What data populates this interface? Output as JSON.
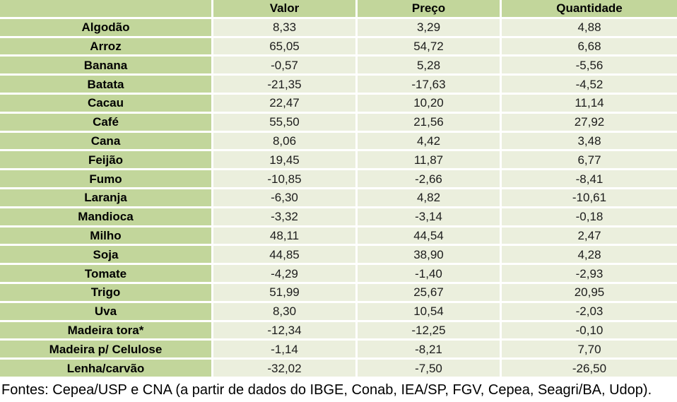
{
  "table": {
    "columns": [
      "",
      "Valor",
      "Preço",
      "Quantidade"
    ],
    "rows": [
      [
        "Algodão",
        "8,33",
        "3,29",
        "4,88"
      ],
      [
        "Arroz",
        "65,05",
        "54,72",
        "6,68"
      ],
      [
        "Banana",
        "-0,57",
        "5,28",
        "-5,56"
      ],
      [
        "Batata",
        "-21,35",
        "-17,63",
        "-4,52"
      ],
      [
        "Cacau",
        "22,47",
        "10,20",
        "11,14"
      ],
      [
        "Café",
        "55,50",
        "21,56",
        "27,92"
      ],
      [
        "Cana",
        "8,06",
        "4,42",
        "3,48"
      ],
      [
        "Feijão",
        "19,45",
        "11,87",
        "6,77"
      ],
      [
        "Fumo",
        "-10,85",
        "-2,66",
        "-8,41"
      ],
      [
        "Laranja",
        "-6,30",
        "4,82",
        "-10,61"
      ],
      [
        "Mandioca",
        "-3,32",
        "-3,14",
        "-0,18"
      ],
      [
        "Milho",
        "48,11",
        "44,54",
        "2,47"
      ],
      [
        "Soja",
        "44,85",
        "38,90",
        "4,28"
      ],
      [
        "Tomate",
        "-4,29",
        "-1,40",
        "-2,93"
      ],
      [
        "Trigo",
        "51,99",
        "25,67",
        "20,95"
      ],
      [
        "Uva",
        "8,30",
        "10,54",
        "-2,03"
      ],
      [
        "Madeira tora*",
        "-12,34",
        "-12,25",
        "-0,10"
      ],
      [
        "Madeira p/ Celulose",
        "-1,14",
        "-8,21",
        "7,70"
      ],
      [
        "Lenha/carvão",
        "-32,02",
        "-7,50",
        "-26,50"
      ]
    ]
  },
  "footer": "Fontes: Cepea/USP e CNA (a partir de dados do IBGE, Conab, IEA/SP, FGV, Cepea, Seagri/BA, Udop).",
  "colors": {
    "header_green": "#c2d69b",
    "cell_light": "#ebefdd",
    "gap_white": "#ffffff",
    "text_black": "#000000"
  },
  "chart_data": {
    "type": "table",
    "columns": [
      "Valor",
      "Preço",
      "Quantidade"
    ],
    "row_labels": [
      "Algodão",
      "Arroz",
      "Banana",
      "Batata",
      "Cacau",
      "Café",
      "Cana",
      "Feijão",
      "Fumo",
      "Laranja",
      "Mandioca",
      "Milho",
      "Soja",
      "Tomate",
      "Trigo",
      "Uva",
      "Madeira tora*",
      "Madeira p/ Celulose",
      "Lenha/carvão"
    ],
    "rows": [
      [
        8.33,
        3.29,
        4.88
      ],
      [
        65.05,
        54.72,
        6.68
      ],
      [
        -0.57,
        5.28,
        -5.56
      ],
      [
        -21.35,
        -17.63,
        -4.52
      ],
      [
        22.47,
        10.2,
        11.14
      ],
      [
        55.5,
        21.56,
        27.92
      ],
      [
        8.06,
        4.42,
        3.48
      ],
      [
        19.45,
        11.87,
        6.77
      ],
      [
        -10.85,
        -2.66,
        -8.41
      ],
      [
        -6.3,
        4.82,
        -10.61
      ],
      [
        -3.32,
        -3.14,
        -0.18
      ],
      [
        48.11,
        44.54,
        2.47
      ],
      [
        44.85,
        38.9,
        4.28
      ],
      [
        -4.29,
        -1.4,
        -2.93
      ],
      [
        51.99,
        25.67,
        20.95
      ],
      [
        8.3,
        10.54,
        -2.03
      ],
      [
        -12.34,
        -12.25,
        -0.1
      ],
      [
        -1.14,
        -8.21,
        7.7
      ],
      [
        -32.02,
        -7.5,
        -26.5
      ]
    ],
    "footnote": "Fontes: Cepea/USP e CNA (a partir de dados do IBGE, Conab, IEA/SP, FGV, Cepea, Seagri/BA, Udop).",
    "decimal_separator": ","
  }
}
